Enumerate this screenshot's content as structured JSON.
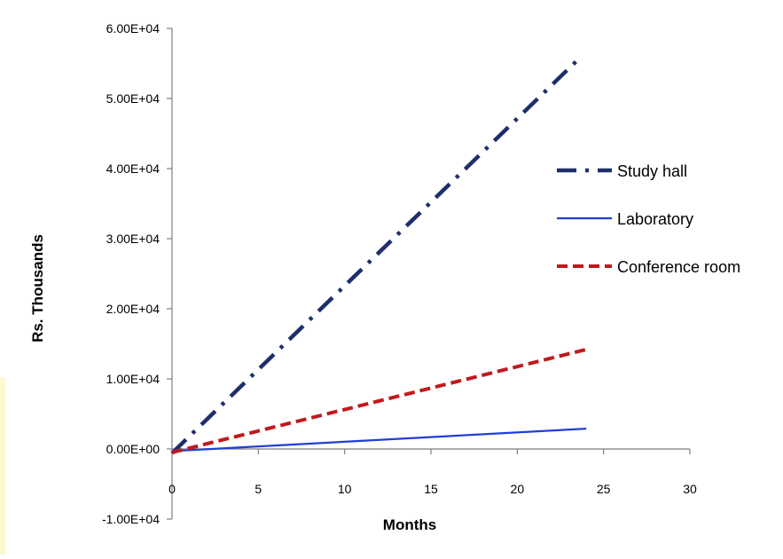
{
  "chart_data": {
    "type": "line",
    "title": "",
    "xlabel": "Months",
    "ylabel": "Rs. Thousands",
    "xlim": [
      0,
      30
    ],
    "ylim": [
      -10000,
      60000
    ],
    "x_ticks": [
      0,
      5,
      10,
      15,
      20,
      25,
      30
    ],
    "x_tick_labels": [
      "0",
      "5",
      "10",
      "15",
      "20",
      "25",
      "30"
    ],
    "y_ticks": [
      -10000,
      0,
      10000,
      20000,
      30000,
      40000,
      50000,
      60000
    ],
    "y_tick_labels": [
      "-1.00E+04",
      "0.00E+00",
      "1.00E+04",
      "2.00E+04",
      "3.00E+04",
      "4.00E+04",
      "5.00E+04",
      "6.00E+04"
    ],
    "grid": false,
    "legend_position": "right",
    "series": [
      {
        "name": "Study hall",
        "x": [
          0,
          23.5
        ],
        "y": [
          -600,
          55500
        ],
        "color": "#1f2f6b",
        "style": "dash-dot"
      },
      {
        "name": "Laboratory",
        "x": [
          0,
          24
        ],
        "y": [
          -300,
          2900
        ],
        "color": "#1f3fd6",
        "style": "solid"
      },
      {
        "name": "Conference room",
        "x": [
          0,
          24
        ],
        "y": [
          -500,
          14200
        ],
        "color": "#c0191e",
        "style": "dashed"
      }
    ]
  }
}
